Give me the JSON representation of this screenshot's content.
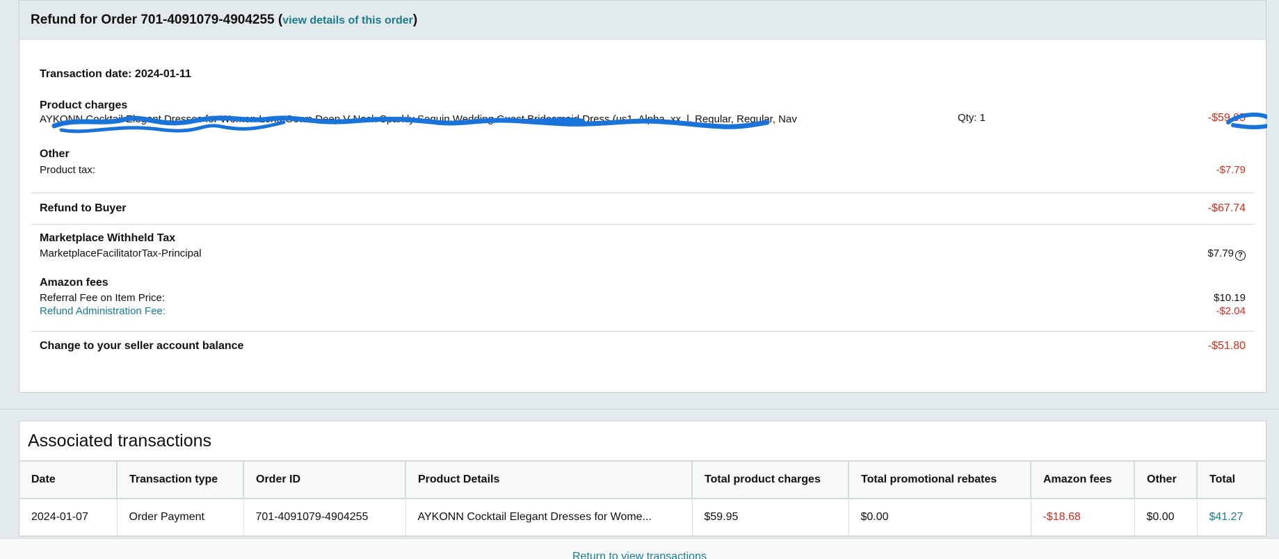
{
  "refund": {
    "title_prefix": "Refund for Order 701-4091079-4904255 (",
    "view_details_link": "view details of this order",
    "title_suffix": ")",
    "transaction_date": "Transaction date: 2024-01-11",
    "product_charges_label": "Product charges",
    "product_description": "AYKONN Cocktail Elegant Dresses for Women Long Gown Deep V Neck Sparkly Sequin Wedding Guest Bridesmaid Dress (us1, Alpha, xx_l, Regular, Regular, Nav",
    "product_qty": "Qty: 1",
    "product_amount": "-$59.95",
    "other_label": "Other",
    "product_tax_label": "Product tax:",
    "product_tax_value": "-$7.79",
    "refund_to_buyer_label": "Refund to Buyer",
    "refund_to_buyer_value": "-$67.74",
    "marketplace_label": "Marketplace Withheld Tax",
    "marketplace_item_label": "MarketplaceFacilitatorTax-Principal",
    "marketplace_item_value": "$7.79",
    "help_icon_glyph": "?",
    "amazon_fees_label": "Amazon fees",
    "referral_fee_label": "Referral Fee on Item Price:",
    "referral_fee_value": "$10.19",
    "refund_admin_fee_label": "Refund Administration Fee:",
    "refund_admin_fee_value": "-$2.04",
    "balance_change_label": "Change to your seller account balance",
    "balance_change_value": "-$51.80"
  },
  "associated": {
    "title": "Associated transactions",
    "columns": [
      "Date",
      "Transaction type",
      "Order ID",
      "Product Details",
      "Total product charges",
      "Total promotional rebates",
      "Amazon fees",
      "Other",
      "Total"
    ],
    "rows": [
      {
        "date": "2024-01-07",
        "type": "Order Payment",
        "order_id": "701-4091079-4904255",
        "product": "AYKONN Cocktail Elegant Dresses for Wome...",
        "product_charges": "$59.95",
        "promo_rebates": "$0.00",
        "amazon_fees": "-$18.68",
        "other": "$0.00",
        "total": "$41.27"
      }
    ]
  },
  "footer": {
    "return_link": "Return to view transactions"
  },
  "colors": {
    "negative": "#cc2d1c",
    "link": "#1a7a90",
    "redaction": "#1a73d9"
  }
}
